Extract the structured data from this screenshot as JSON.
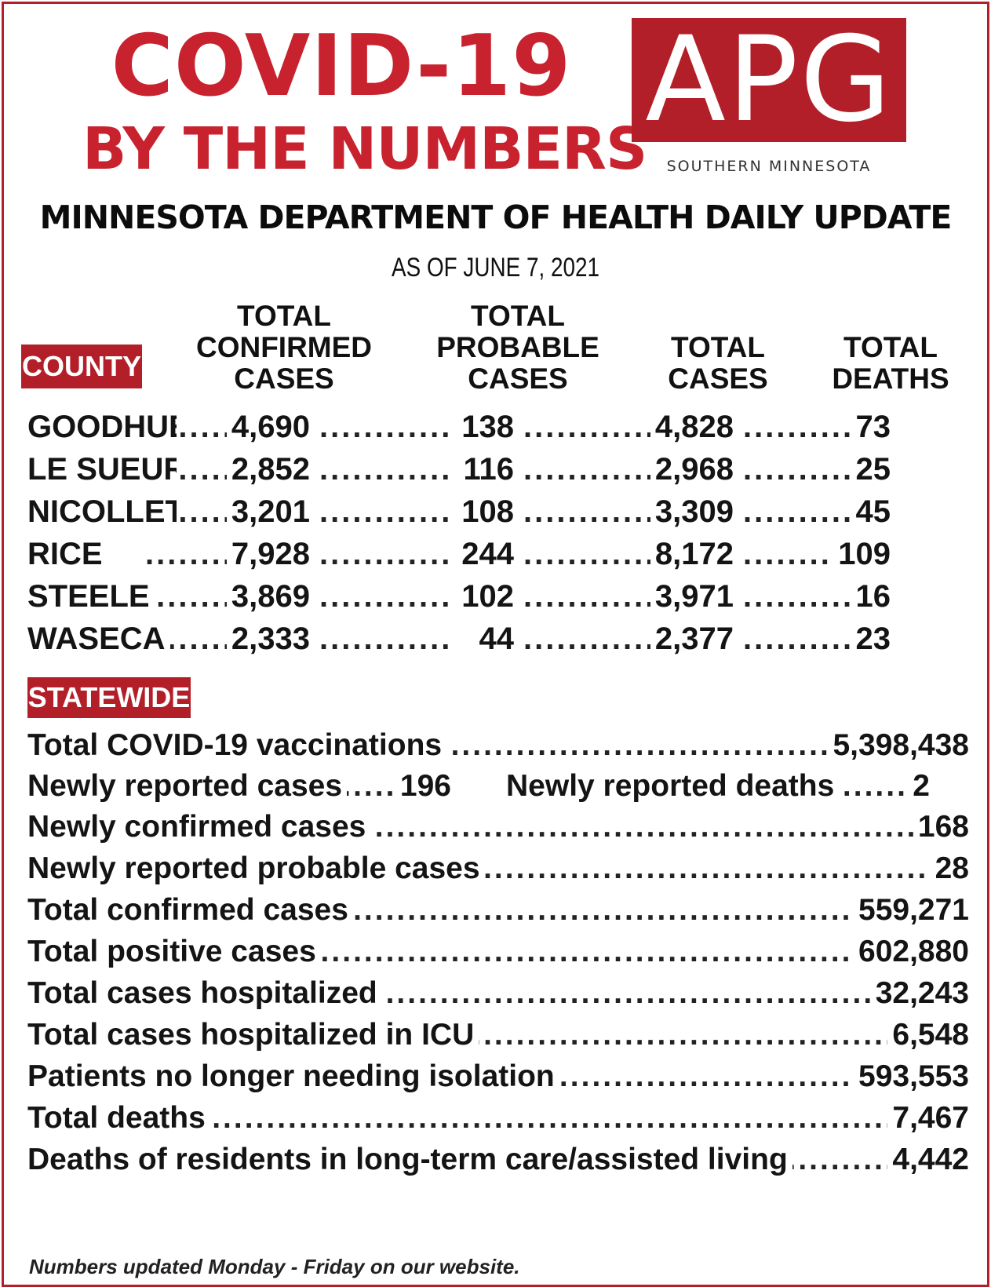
{
  "header": {
    "headline_line1": "COVID-19",
    "headline_line2": "BY THE NUMBERS",
    "logo_text": "APG",
    "logo_subtitle": "SOUTHERN MINNESOTA",
    "title": "MINNESOTA DEPARTMENT OF HEALTH DAILY UPDATE",
    "as_of": "AS OF JUNE 7, 2021"
  },
  "county_table": {
    "tag": "COUNTY",
    "columns": [
      "TOTAL CONFIRMED CASES",
      "TOTAL PROBABLE CASES",
      "TOTAL CASES",
      "TOTAL DEATHS"
    ],
    "rows": [
      {
        "county": "GOODHUE",
        "confirmed": "4,690",
        "probable": "138",
        "total": "4,828",
        "deaths": "73"
      },
      {
        "county": "LE SUEUR",
        "confirmed": "2,852",
        "probable": "116",
        "total": "2,968",
        "deaths": "25"
      },
      {
        "county": "NICOLLET",
        "confirmed": "3,201",
        "probable": "108",
        "total": "3,309",
        "deaths": "45"
      },
      {
        "county": "RICE",
        "confirmed": "7,928",
        "probable": "244",
        "total": "8,172",
        "deaths": "109"
      },
      {
        "county": "STEELE",
        "confirmed": "3,869",
        "probable": "102",
        "total": "3,971",
        "deaths": "16"
      },
      {
        "county": "WASECA",
        "confirmed": "2,333",
        "probable": "44",
        "total": "2,377",
        "deaths": "23"
      }
    ]
  },
  "statewide": {
    "tag": "STATEWIDE",
    "vaccinations": {
      "label": "Total COVID-19 vaccinations",
      "value": "5,398,438"
    },
    "new_cases": {
      "label": "Newly reported cases",
      "value": "196"
    },
    "new_deaths": {
      "label": "Newly reported deaths",
      "value": "2"
    },
    "rows": [
      {
        "label": "Newly confirmed cases",
        "value": "168"
      },
      {
        "label": "Newly reported probable cases",
        "value": "28"
      },
      {
        "label": "Total confirmed cases",
        "value": "559,271"
      },
      {
        "label": "Total positive cases",
        "value": "602,880"
      },
      {
        "label": "Total cases hospitalized",
        "value": "32,243"
      },
      {
        "label": "Total cases hospitalized in ICU",
        "value": "6,548"
      },
      {
        "label": "Patients no longer needing isolation",
        "value": "593,553"
      },
      {
        "label": "Total deaths",
        "value": "7,467"
      },
      {
        "label": "Deaths of residents in long-term care/assisted living",
        "value": "4,442"
      }
    ]
  },
  "footer": "Numbers updated Monday - Friday on our website.",
  "colors": {
    "accent_red": "#b31f29",
    "headline_red": "#c8222f"
  }
}
